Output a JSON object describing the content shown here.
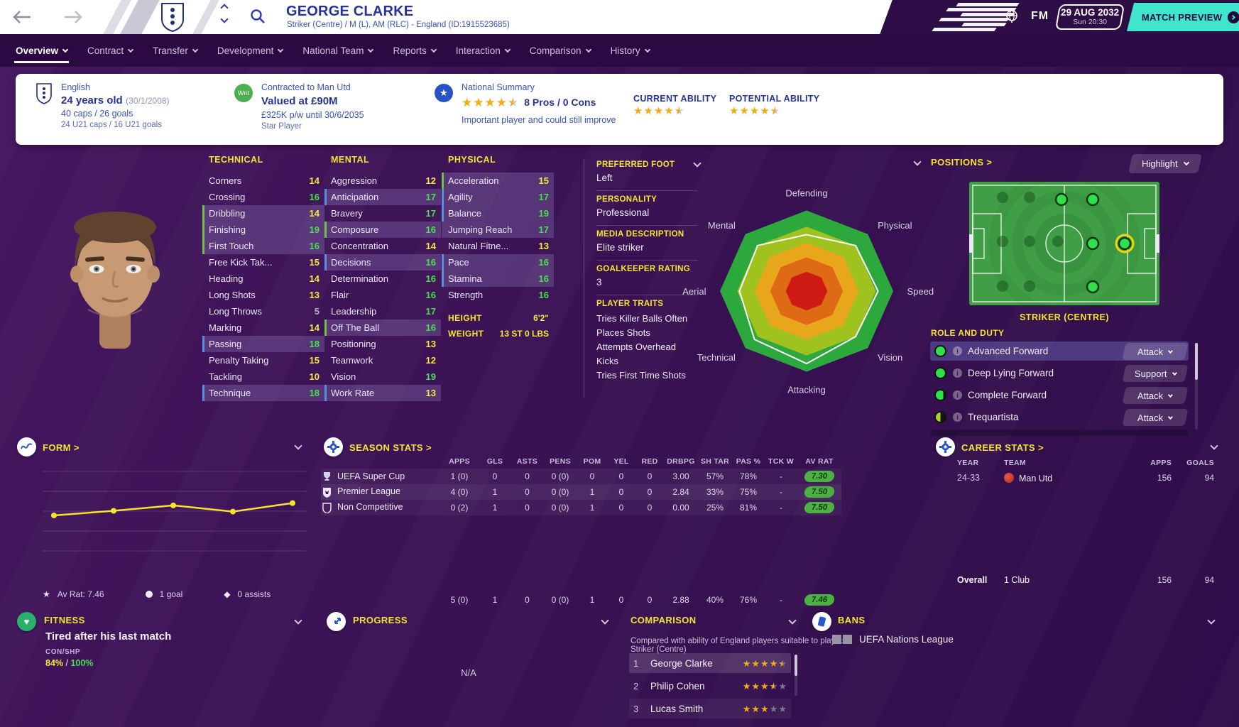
{
  "header": {
    "player_name": "GEORGE CLARKE",
    "player_meta": "Striker (Centre) / M (L), AM (RLC) - England (ID:1915523685)",
    "fm_logo": "FM",
    "date": "29 AUG 2032",
    "time": "Sun 20:30",
    "match_preview": "MATCH PREVIEW"
  },
  "nav": {
    "tabs": [
      {
        "label": "Overview",
        "active": true
      },
      {
        "label": "Contract"
      },
      {
        "label": "Transfer"
      },
      {
        "label": "Development"
      },
      {
        "label": "National Team"
      },
      {
        "label": "Reports"
      },
      {
        "label": "Interaction"
      },
      {
        "label": "Comparison"
      },
      {
        "label": "History"
      }
    ]
  },
  "info_bar": {
    "nationality": {
      "line1": "English",
      "age": "24 years old",
      "dob": "(30/1/2008)",
      "caps": "40 caps / 26 goals",
      "u21": "24 U21 caps / 16 U21 goals"
    },
    "contract": {
      "badge": "Wnt",
      "line1": "Contracted to Man Utd",
      "value": "Valued at £90M",
      "wage": "£325K p/w until 30/6/2035",
      "status": "Star Player"
    },
    "national_summary": {
      "label": "National Summary",
      "stars": 4.5,
      "pros": "8 Pros / 0 Cons",
      "note": "Important player and could still improve"
    },
    "current_ability": {
      "label": "CURRENT ABILITY",
      "stars": 4.5
    },
    "potential_ability": {
      "label": "POTENTIAL ABILITY",
      "stars": 4.5
    }
  },
  "attributes": {
    "technical": {
      "title": "TECHNICAL",
      "rows": [
        {
          "n": "Corners",
          "v": 14
        },
        {
          "n": "Crossing",
          "v": 16
        },
        {
          "n": "Dribbling",
          "v": 14,
          "h": "g"
        },
        {
          "n": "Finishing",
          "v": 19,
          "h": "g"
        },
        {
          "n": "First Touch",
          "v": 16,
          "h": "g"
        },
        {
          "n": "Free Kick Tak...",
          "v": 15
        },
        {
          "n": "Heading",
          "v": 14
        },
        {
          "n": "Long Shots",
          "v": 13
        },
        {
          "n": "Long Throws",
          "v": 5
        },
        {
          "n": "Marking",
          "v": 14
        },
        {
          "n": "Passing",
          "v": 18,
          "h": "b"
        },
        {
          "n": "Penalty Taking",
          "v": 15
        },
        {
          "n": "Tackling",
          "v": 10
        },
        {
          "n": "Technique",
          "v": 18,
          "h": "b"
        }
      ]
    },
    "mental": {
      "title": "MENTAL",
      "rows": [
        {
          "n": "Aggression",
          "v": 12
        },
        {
          "n": "Anticipation",
          "v": 17,
          "h": "b"
        },
        {
          "n": "Bravery",
          "v": 17
        },
        {
          "n": "Composure",
          "v": 16,
          "h": "g"
        },
        {
          "n": "Concentration",
          "v": 14
        },
        {
          "n": "Decisions",
          "v": 16,
          "h": "b"
        },
        {
          "n": "Determination",
          "v": 16
        },
        {
          "n": "Flair",
          "v": 16
        },
        {
          "n": "Leadership",
          "v": 17
        },
        {
          "n": "Off The Ball",
          "v": 16,
          "h": "g"
        },
        {
          "n": "Positioning",
          "v": 13
        },
        {
          "n": "Teamwork",
          "v": 12
        },
        {
          "n": "Vision",
          "v": 19
        },
        {
          "n": "Work Rate",
          "v": 13,
          "h": "b"
        }
      ]
    },
    "physical": {
      "title": "PHYSICAL",
      "rows": [
        {
          "n": "Acceleration",
          "v": 15,
          "h": "g"
        },
        {
          "n": "Agility",
          "v": 17,
          "h": "b"
        },
        {
          "n": "Balance",
          "v": 19,
          "h": "b"
        },
        {
          "n": "Jumping Reach",
          "v": 17,
          "h": "p"
        },
        {
          "n": "Natural Fitne...",
          "v": 13
        },
        {
          "n": "Pace",
          "v": 16,
          "h": "b"
        },
        {
          "n": "Stamina",
          "v": 16,
          "h": "b"
        },
        {
          "n": "Strength",
          "v": 16
        }
      ],
      "height_label": "HEIGHT",
      "height_value": "6'2\"",
      "weight_label": "WEIGHT",
      "weight_value": "13 ST 0 LBS"
    }
  },
  "profile": {
    "preferred_foot_label": "PREFERRED FOOT",
    "preferred_foot": "Left",
    "personality_label": "PERSONALITY",
    "personality": "Professional",
    "media_label": "MEDIA DESCRIPTION",
    "media": "Elite striker",
    "gk_label": "GOALKEEPER RATING",
    "gk": "3",
    "traits_label": "PLAYER TRAITS",
    "traits": [
      "Tries Killer Balls Often",
      "Places Shots",
      "Attempts Overhead Kicks",
      "Tries First Time Shots"
    ]
  },
  "positions": {
    "title": "POSITIONS >",
    "highlight": "Highlight",
    "selected": "STRIKER (CENTRE)",
    "role_duty_label": "ROLE AND DUTY",
    "roles": [
      {
        "name": "Advanced Forward",
        "duty": "Attack",
        "dot": "full",
        "selected": true
      },
      {
        "name": "Deep Lying Forward",
        "duty": "Support",
        "dot": "full"
      },
      {
        "name": "Complete Forward",
        "duty": "Attack",
        "dot": "mostly"
      },
      {
        "name": "Trequartista",
        "duty": "Attack",
        "dot": "half"
      }
    ],
    "pitch_dots": {
      "bright": [
        [
          130,
          27
        ],
        [
          174,
          27
        ],
        [
          174,
          89
        ],
        [
          174,
          150
        ]
      ],
      "selected": [
        [
          219,
          89
        ]
      ],
      "faded": [
        [
          47,
          24
        ],
        [
          85,
          24
        ],
        [
          47,
          86
        ],
        [
          85,
          86
        ],
        [
          125,
          86
        ],
        [
          47,
          149
        ],
        [
          85,
          149
        ]
      ]
    }
  },
  "form": {
    "title": "FORM >",
    "av_rat": "Av Rat: 7.46",
    "goals": "1 goal",
    "assists": "0 assists"
  },
  "season_stats": {
    "title": "SEASON STATS >",
    "columns": [
      "APPS",
      "GLS",
      "ASTS",
      "PENS",
      "POM",
      "YEL",
      "RED",
      "DRBPG",
      "SH TAR",
      "PAS %",
      "TCK W",
      "AV RAT"
    ],
    "rows": [
      {
        "competition": "UEFA Super Cup",
        "icon": "supercup",
        "values": [
          "1 (0)",
          "0",
          "0",
          "0 (0)",
          "0",
          "0",
          "0",
          "3.00",
          "57%",
          "78%",
          "-"
        ],
        "rating": "7.30"
      },
      {
        "competition": "Premier League",
        "icon": "premier",
        "values": [
          "4 (0)",
          "1",
          "0",
          "0 (0)",
          "1",
          "0",
          "0",
          "2.84",
          "33%",
          "75%",
          "-"
        ],
        "rating": "7.50"
      },
      {
        "competition": "Non Competitive",
        "icon": "shield",
        "values": [
          "0 (2)",
          "1",
          "0",
          "0 (0)",
          "1",
          "0",
          "0",
          "0.00",
          "25%",
          "81%",
          "-"
        ],
        "rating": "7.50"
      }
    ],
    "totals": {
      "values": [
        "5 (0)",
        "1",
        "0",
        "0 (0)",
        "1",
        "0",
        "0",
        "2.88",
        "40%",
        "76%",
        "-"
      ],
      "rating": "7.46"
    }
  },
  "career_stats": {
    "title": "CAREER STATS >",
    "columns": [
      "YEAR",
      "TEAM",
      "APPS",
      "GOALS"
    ],
    "rows": [
      {
        "year": "24-33",
        "team": "Man Utd",
        "apps": "156",
        "goals": "94"
      }
    ],
    "overall_label": "Overall",
    "overall_team": "1 Club",
    "overall_apps": "156",
    "overall_goals": "94"
  },
  "fitness": {
    "title": "FITNESS",
    "status": "Tired after his last match",
    "metric_label": "CON/SHP",
    "con": "84%",
    "shp": "100%"
  },
  "progress": {
    "title": "PROGRESS",
    "value": "N/A"
  },
  "comparison": {
    "title": "COMPARISON",
    "subtitle": "Compared with ability of England players suitable to play as Striker (Centre)",
    "rows": [
      {
        "rank": "1",
        "name": "George Clarke",
        "stars": 4.5
      },
      {
        "rank": "2",
        "name": "Philip Cohen",
        "stars": 3.5
      },
      {
        "rank": "3",
        "name": "Lucas Smith",
        "stars": 3
      }
    ]
  },
  "bans": {
    "title": "BANS",
    "items": [
      "UEFA Nations League"
    ]
  },
  "colors": {
    "accent_yellow": "#f3e52e",
    "attr_green": "#4ade4f",
    "attr_yellow": "#f3e83b",
    "teal": "#3fe6cd",
    "pill_green": "#4cb043",
    "nav_purple": "#2c0942"
  },
  "chart_data": [
    {
      "id": "form_ratings",
      "type": "line",
      "title": "FORM",
      "x": [
        1,
        2,
        3,
        4,
        5
      ],
      "values": [
        7.3,
        7.36,
        7.43,
        7.35,
        7.46
      ],
      "ylim": [
        6.6,
        8.0
      ],
      "grid": true,
      "line_color": "#f6e32b",
      "annotation": "Av Rat: 7.46"
    },
    {
      "id": "attribute_radar",
      "type": "radar",
      "categories": [
        "Defending",
        "Physical",
        "Speed",
        "Vision",
        "Attacking",
        "Technical",
        "Aerial",
        "Mental"
      ],
      "values": [
        14,
        16,
        16.5,
        16,
        18,
        17,
        15.5,
        16
      ],
      "max": 20,
      "ring_colors": [
        "#2ca83c",
        "#9fc21f",
        "#e7a61c",
        "#df6a16",
        "#cd1a12"
      ]
    }
  ]
}
